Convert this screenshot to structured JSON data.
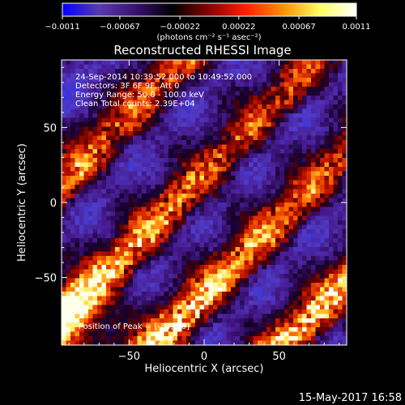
{
  "chart_data": {
    "type": "heatmap",
    "title": "Reconstructed RHESSI Image",
    "xlabel": "Heliocentric X (arcsec)",
    "ylabel": "Heliocentric Y (arcsec)",
    "xlim": [
      -95,
      95
    ],
    "ylim": [
      -95,
      95
    ],
    "x_ticks": [
      {
        "value": -50,
        "label": "−50"
      },
      {
        "value": 0,
        "label": "0"
      },
      {
        "value": 50,
        "label": "50"
      }
    ],
    "y_ticks": [
      {
        "value": -50,
        "label": "−50"
      },
      {
        "value": 0,
        "label": "0"
      },
      {
        "value": 50,
        "label": "50"
      }
    ],
    "colorbar": {
      "min": -0.0011,
      "max": 0.0011,
      "ticks": [
        {
          "value": -0.0011,
          "label": "−0.0011"
        },
        {
          "value": -0.00067,
          "label": "−0.00067"
        },
        {
          "value": -0.00022,
          "label": "−0.00022"
        },
        {
          "value": 0.00022,
          "label": "0.00022"
        },
        {
          "value": 0.00067,
          "label": "0.00067"
        },
        {
          "value": 0.0011,
          "label": "0.0011"
        }
      ],
      "unit_label": "(photons cm⁻² s⁻¹ asec⁻²)",
      "colors": [
        "#0000ff",
        "#5a3ab0",
        "#3a1070",
        "#000000",
        "#8b0000",
        "#ff2000",
        "#ff9000",
        "#ffff60",
        "#ffffff"
      ]
    },
    "info_lines": [
      "24-Sep-2014 10:39:52.000 to 10:49:52.000",
      "Detectors: 3F 6F 9F, Att 0",
      "Energy Range: 50.0 - 100.0 keV",
      "Clean    Total counts: 2.39E+04"
    ],
    "peak_label": "Position of Peak = [-84,-80]",
    "peak": {
      "x": -84,
      "y": -80
    },
    "grid": false
  },
  "footer": {
    "timestamp": "15-May-2017 16:58"
  }
}
